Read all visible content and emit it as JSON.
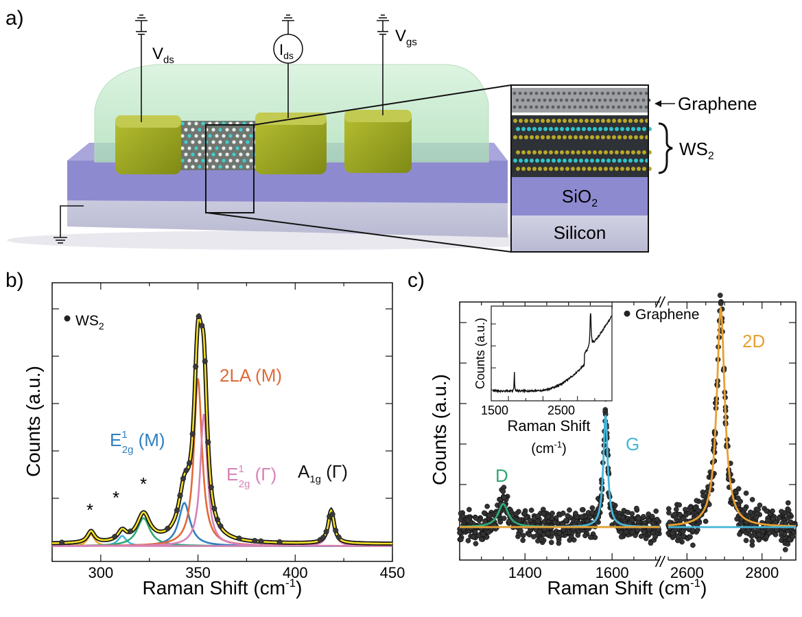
{
  "panel_a": {
    "label": "a)",
    "vds": "V",
    "vds_sub": "ds",
    "ids": "I",
    "ids_sub": "ds",
    "vgs": "V",
    "vgs_sub": "gs",
    "inset_labels": {
      "graphene": "Graphene",
      "ws2": "WS",
      "ws2_sub": "2",
      "sio2": "SiO",
      "sio2_sub": "2",
      "silicon": "Silicon"
    },
    "colors": {
      "encapsulant": "#bfe8c8",
      "contact": "#9aa520",
      "oxide": "#8e8ad0",
      "silicon": "#c8c8dc"
    }
  },
  "panel_b": {
    "label": "b)",
    "legend": "WS",
    "legend_sub": "2",
    "chart_data": {
      "type": "scatter",
      "xlabel": "Raman Shift (cm",
      "xlabel_sup": "-1",
      "xlabel_end": ")",
      "ylabel": "Counts (a.u.)",
      "xlim": [
        275,
        450
      ],
      "ylim": [
        0,
        1.02
      ],
      "xticks": [
        "300",
        "350",
        "400",
        "450"
      ],
      "fit_components": [
        {
          "center": 295,
          "height": 0.045,
          "width": 2.2,
          "color": "#e8a830"
        },
        {
          "center": 311,
          "height": 0.04,
          "width": 2.6,
          "color": "#45b5d8"
        },
        {
          "center": 322,
          "height": 0.11,
          "width": 4.0,
          "color": "#2fa876"
        },
        {
          "center": 343,
          "height": 0.17,
          "width": 3.5,
          "color": "#2f7fbf"
        },
        {
          "center": 350,
          "height": 0.66,
          "width": 2.5,
          "color": "#e06a38"
        },
        {
          "center": 353,
          "height": 0.52,
          "width": 2.2,
          "color": "#d881b8"
        },
        {
          "center": 418.5,
          "height": 0.13,
          "width": 1.8,
          "color": "#d881b8"
        }
      ],
      "envelope_color": "#f4e02a",
      "peak_labels": {
        "e2g_m": "E",
        "e2g_m_sup": "1",
        "e2g_m_sub": "2g",
        "e2g_m_suffix": " (M)",
        "la2": "2LA (M)",
        "e2g_g": "E",
        "e2g_g_sup": "1",
        "e2g_g_sub": "2g",
        "e2g_g_suffix": " (Γ)",
        "a1g": "A",
        "a1g_sub": "1g",
        "a1g_suffix": " (Γ)",
        "star": "*"
      }
    }
  },
  "panel_c": {
    "label": "c)",
    "legend": "Graphene",
    "chart_data": {
      "type": "scatter",
      "xlabel": "Raman Shift (cm",
      "xlabel_sup": "-1",
      "xlabel_end": ")",
      "ylabel": "Counts (a.u.)",
      "segments": [
        {
          "xlim": [
            1250,
            1710
          ],
          "xticks": [
            "1400",
            "1600"
          ]
        },
        {
          "xlim": [
            2550,
            2890
          ],
          "xticks": [
            "2600",
            "2800"
          ]
        }
      ],
      "axis_break": "//",
      "peaks": [
        {
          "label": "D",
          "center": 1350,
          "height": 0.085,
          "width": 14,
          "color": "#2fa876"
        },
        {
          "label": "G",
          "center": 1585,
          "height": 0.41,
          "width": 6,
          "color": "#45b5d8"
        },
        {
          "label": "2D",
          "center": 2690,
          "height": 0.8,
          "width": 13,
          "color": "#e8a030"
        }
      ],
      "inset": {
        "ylabel": "Counts (a.u.)",
        "xlabel_line1": "Raman Shift",
        "xlabel_line2": "(cm",
        "xlabel_line2_sup": "-1",
        "xlabel_line2_end": ")",
        "xticks": [
          "1500",
          "2500"
        ],
        "xlim": [
          1250,
          3000
        ]
      }
    }
  }
}
